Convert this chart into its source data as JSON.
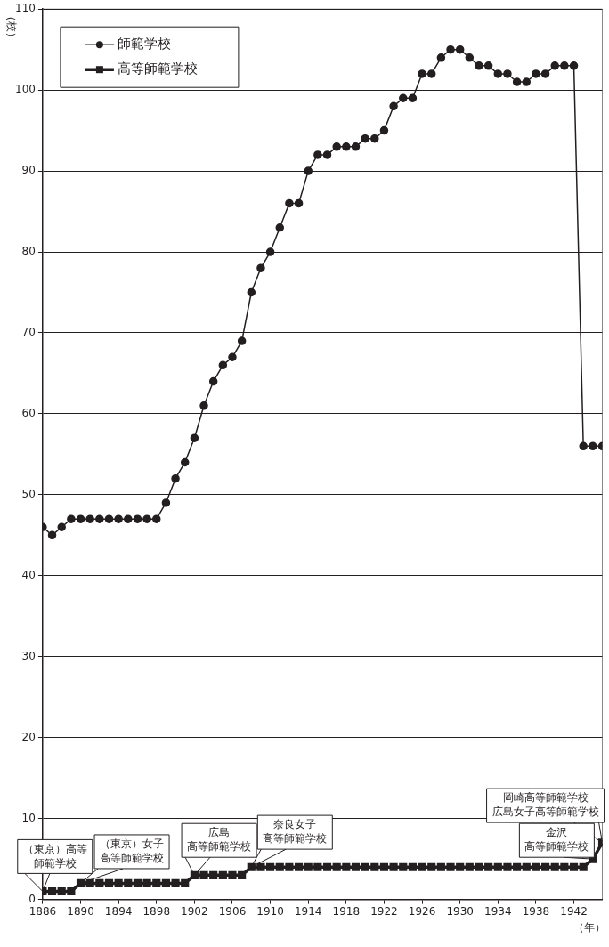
{
  "chart_data": {
    "type": "line",
    "xlabel": "（年）",
    "ylabel": "（校）",
    "x": [
      1886,
      1887,
      1888,
      1889,
      1890,
      1891,
      1892,
      1893,
      1894,
      1895,
      1896,
      1897,
      1898,
      1899,
      1900,
      1901,
      1902,
      1903,
      1904,
      1905,
      1906,
      1907,
      1908,
      1909,
      1910,
      1911,
      1912,
      1913,
      1914,
      1915,
      1916,
      1917,
      1918,
      1919,
      1920,
      1921,
      1922,
      1923,
      1924,
      1925,
      1926,
      1927,
      1928,
      1929,
      1930,
      1931,
      1932,
      1933,
      1934,
      1935,
      1936,
      1937,
      1938,
      1939,
      1940,
      1941,
      1942,
      1943,
      1944,
      1945
    ],
    "series": [
      {
        "name": "師範学校",
        "color": "#231f20",
        "marker": "circle",
        "values": [
          46,
          45,
          46,
          47,
          47,
          47,
          47,
          47,
          47,
          47,
          47,
          47,
          47,
          49,
          52,
          54,
          57,
          61,
          64,
          66,
          67,
          69,
          75,
          78,
          80,
          83,
          86,
          86,
          90,
          92,
          92,
          93,
          93,
          93,
          94,
          94,
          95,
          98,
          99,
          99,
          102,
          102,
          104,
          105,
          105,
          104,
          103,
          103,
          102,
          102,
          101,
          101,
          102,
          102,
          103,
          103,
          103,
          56,
          56,
          56
        ]
      },
      {
        "name": "高等師範学校",
        "color": "#231f20",
        "marker": "square",
        "values": [
          1,
          1,
          1,
          1,
          2,
          2,
          2,
          2,
          2,
          2,
          2,
          2,
          2,
          2,
          2,
          2,
          3,
          3,
          3,
          3,
          3,
          3,
          4,
          4,
          4,
          4,
          4,
          4,
          4,
          4,
          4,
          4,
          4,
          4,
          4,
          4,
          4,
          4,
          4,
          4,
          4,
          4,
          4,
          4,
          4,
          4,
          4,
          4,
          4,
          4,
          4,
          4,
          4,
          4,
          4,
          4,
          4,
          4,
          5,
          7
        ]
      }
    ],
    "xlim": [
      1886,
      1945
    ],
    "xticks": [
      1886,
      1890,
      1894,
      1898,
      1902,
      1906,
      1910,
      1914,
      1918,
      1922,
      1926,
      1930,
      1934,
      1938,
      1942
    ],
    "ylim": [
      0,
      110
    ],
    "yticks": [
      0,
      10,
      20,
      30,
      40,
      50,
      60,
      70,
      80,
      90,
      100,
      110
    ],
    "grid": "y",
    "legend": "top left",
    "line_style": "solid",
    "annotations": [
      {
        "text": "（東京）高等師範学校",
        "x": 1886,
        "y": 1
      },
      {
        "text": "（東京）女子高等師範学校",
        "x": 1890,
        "y": 2
      },
      {
        "text": "広島高等師範学校",
        "x": 1902,
        "y": 3
      },
      {
        "text": "奈良女子高等師範学校",
        "x": 1908,
        "y": 4
      },
      {
        "text": "金沢高等師範学校",
        "x": 1944,
        "y": 5
      },
      {
        "text": "岡崎高等師範学校広島女子高等師範学校",
        "x": 1945,
        "y": 7
      }
    ]
  }
}
